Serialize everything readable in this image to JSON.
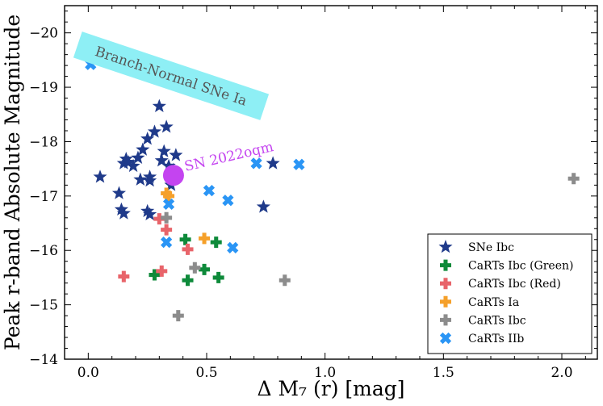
{
  "chart_data": {
    "type": "scatter",
    "xlabel": "Δ M₇ (r) [mag]",
    "ylabel": "Peak r-band Absolute Magnitude",
    "xlim": [
      -0.1,
      2.15
    ],
    "ylim": [
      -14,
      -20.5
    ],
    "y_inverted": true,
    "xticks": [
      0.0,
      0.5,
      1.0,
      1.5,
      2.0
    ],
    "xtick_labels": [
      "0.0",
      "0.5",
      "1.0",
      "1.5",
      "2.0"
    ],
    "yticks": [
      -20,
      -19,
      -18,
      -17,
      -16,
      -15,
      -14
    ],
    "ytick_labels": [
      "−20",
      "−19",
      "−18",
      "−17",
      "−16",
      "−15",
      "−14"
    ],
    "legend_location": "lower-right",
    "series": [
      {
        "name": "SNe Ibc",
        "marker": "star",
        "color": "#1f3a8a",
        "points": [
          [
            0.05,
            -17.35
          ],
          [
            0.13,
            -17.05
          ],
          [
            0.14,
            -16.75
          ],
          [
            0.15,
            -16.68
          ],
          [
            0.15,
            -17.6
          ],
          [
            0.16,
            -17.68
          ],
          [
            0.17,
            -17.62
          ],
          [
            0.19,
            -17.55
          ],
          [
            0.21,
            -17.7
          ],
          [
            0.22,
            -17.3
          ],
          [
            0.23,
            -17.85
          ],
          [
            0.25,
            -18.05
          ],
          [
            0.25,
            -16.72
          ],
          [
            0.26,
            -16.66
          ],
          [
            0.26,
            -17.28
          ],
          [
            0.26,
            -17.35
          ],
          [
            0.28,
            -18.18
          ],
          [
            0.3,
            -18.65
          ],
          [
            0.31,
            -17.65
          ],
          [
            0.32,
            -17.82
          ],
          [
            0.33,
            -18.27
          ],
          [
            0.34,
            -17.55
          ],
          [
            0.35,
            -17.2
          ],
          [
            0.36,
            -17.48
          ],
          [
            0.37,
            -17.75
          ],
          [
            0.74,
            -16.8
          ],
          [
            0.78,
            -17.6
          ]
        ]
      },
      {
        "name": "CaRTs Ibc (Green)",
        "marker": "plus",
        "color": "#0e8a3a",
        "points": [
          [
            0.28,
            -15.55
          ],
          [
            0.41,
            -16.2
          ],
          [
            0.42,
            -15.45
          ],
          [
            0.49,
            -15.65
          ],
          [
            0.54,
            -16.15
          ],
          [
            0.55,
            -15.5
          ]
        ]
      },
      {
        "name": "CaRTs Ibc (Red)",
        "marker": "plus",
        "color": "#e8646a",
        "points": [
          [
            0.15,
            -15.52
          ],
          [
            0.3,
            -16.58
          ],
          [
            0.31,
            -15.62
          ],
          [
            0.33,
            -16.38
          ],
          [
            0.42,
            -16.02
          ]
        ]
      },
      {
        "name": "CaRTs Ia",
        "marker": "plus",
        "color": "#f5a02a",
        "points": [
          [
            0.33,
            -17.05
          ],
          [
            0.34,
            -17.0
          ],
          [
            0.49,
            -16.22
          ]
        ]
      },
      {
        "name": "CaRTs Ibc",
        "marker": "plus",
        "color": "#8c8c8c",
        "points": [
          [
            0.33,
            -16.6
          ],
          [
            0.38,
            -14.8
          ],
          [
            0.45,
            -15.68
          ],
          [
            0.83,
            -15.45
          ],
          [
            2.05,
            -17.32
          ]
        ]
      },
      {
        "name": "CaRTs IIb",
        "marker": "x",
        "color": "#2a95f5",
        "points": [
          [
            0.01,
            -19.42
          ],
          [
            0.33,
            -16.15
          ],
          [
            0.34,
            -16.85
          ],
          [
            0.51,
            -17.1
          ],
          [
            0.59,
            -16.92
          ],
          [
            0.61,
            -16.05
          ],
          [
            0.71,
            -17.6
          ],
          [
            0.89,
            -17.58
          ]
        ]
      }
    ],
    "highlight": {
      "name": "SN 2022oqm",
      "x": 0.36,
      "y": -17.38,
      "color": "#c444f0"
    },
    "annotations": [
      {
        "text": "Branch-Normal SNe Ia",
        "box_color": "#8eeff5",
        "text_color": "#555555"
      },
      {
        "text": "SN 2022oqm",
        "text_color": "#c444f0"
      }
    ]
  }
}
